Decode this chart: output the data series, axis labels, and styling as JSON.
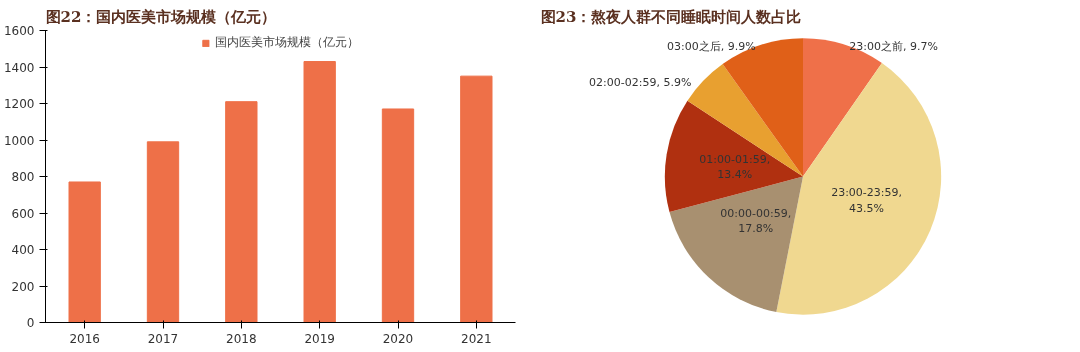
{
  "chart_data": [
    {
      "type": "bar",
      "title": "图22：国内医美市场规模（亿元）",
      "categories": [
        "2016",
        "2017",
        "2018",
        "2019",
        "2020",
        "2021"
      ],
      "series": [
        {
          "name": "国内医美市场规模（亿元）",
          "color": "#ee7048",
          "values": [
            770,
            990,
            1210,
            1430,
            1170,
            1350
          ]
        }
      ],
      "ylim": [
        0,
        1600
      ],
      "yticks": [
        0,
        200,
        400,
        600,
        800,
        1000,
        1200,
        1400,
        1600
      ],
      "grid": false,
      "legend": "top"
    },
    {
      "type": "pie",
      "title": "图23：熬夜人群不同睡眠时间人数占比",
      "categories": [
        "23:00之前",
        "23:00-23:59",
        "00:00-00:59",
        "01:00-01:59",
        "02:00-02:59",
        "03:00之后"
      ],
      "values": [
        9.7,
        43.5,
        17.8,
        13.4,
        5.9,
        9.9
      ],
      "colors": [
        "#ef7049",
        "#f0d890",
        "#a89070",
        "#b03010",
        "#e8a030",
        "#e06018"
      ],
      "value_labels": [
        ", 9.7%",
        ", 43.5%",
        ", 17.8%",
        ", 13.4%",
        ", 5.9%",
        ", 9.9%"
      ]
    }
  ]
}
